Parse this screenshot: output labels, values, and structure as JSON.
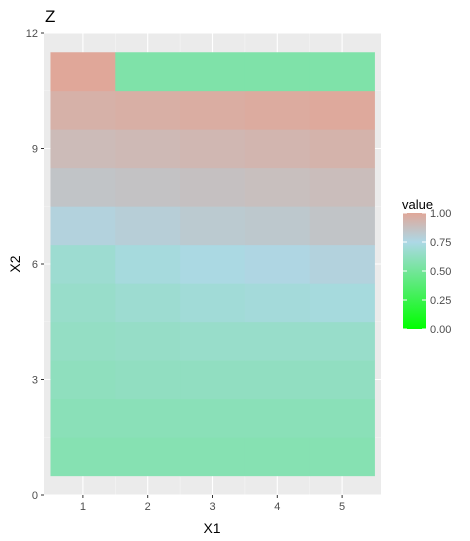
{
  "chart_data": {
    "type": "heatmap",
    "title": "Z",
    "xlabel": "X1",
    "ylabel": "X2",
    "x": [
      1,
      2,
      3,
      4,
      5
    ],
    "y": [
      1,
      2,
      3,
      4,
      5,
      6,
      7,
      8,
      9,
      10,
      11
    ],
    "xlim": [
      0.4,
      5.6
    ],
    "ylim": [
      0,
      12
    ],
    "x_ticks": [
      "1",
      "2",
      "3",
      "4",
      "5"
    ],
    "y_ticks": [
      "0",
      "3",
      "6",
      "9",
      "12"
    ],
    "values": [
      [
        0.58,
        0.58,
        0.58,
        0.58,
        0.58
      ],
      [
        0.6,
        0.6,
        0.6,
        0.6,
        0.6
      ],
      [
        0.62,
        0.63,
        0.63,
        0.63,
        0.63
      ],
      [
        0.64,
        0.65,
        0.66,
        0.66,
        0.66
      ],
      [
        0.66,
        0.68,
        0.7,
        0.71,
        0.72
      ],
      [
        0.68,
        0.72,
        0.74,
        0.76,
        0.78
      ],
      [
        0.78,
        0.8,
        0.82,
        0.83,
        0.85
      ],
      [
        0.85,
        0.86,
        0.87,
        0.88,
        0.89
      ],
      [
        0.9,
        0.91,
        0.92,
        0.93,
        0.94
      ],
      [
        0.95,
        0.96,
        0.97,
        0.98,
        0.99
      ],
      [
        1.0,
        0.55,
        0.55,
        0.55,
        0.55
      ]
    ],
    "grid": true,
    "legend": {
      "title": "value",
      "position": "right",
      "labels": [
        "0.00",
        "0.25",
        "0.50",
        "0.75",
        "1.00"
      ],
      "stops": [
        0.0,
        0.25,
        0.5,
        0.75,
        1.0
      ]
    },
    "colors": {
      "low": "#00ff00",
      "mid": "#add8e6",
      "high": "#e0a799",
      "panel_bg": "#ebebeb",
      "grid_major": "#ffffff",
      "text": "#4d4d4d"
    }
  }
}
